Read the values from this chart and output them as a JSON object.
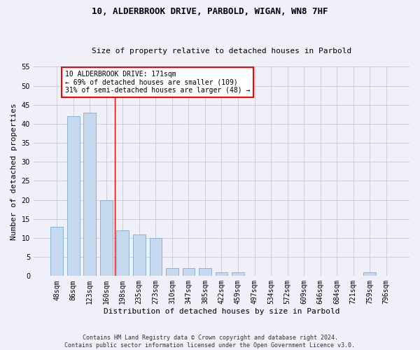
{
  "title1": "10, ALDERBROOK DRIVE, PARBOLD, WIGAN, WN8 7HF",
  "title2": "Size of property relative to detached houses in Parbold",
  "xlabel": "Distribution of detached houses by size in Parbold",
  "ylabel": "Number of detached properties",
  "categories": [
    "48sqm",
    "86sqm",
    "123sqm",
    "160sqm",
    "198sqm",
    "235sqm",
    "273sqm",
    "310sqm",
    "347sqm",
    "385sqm",
    "422sqm",
    "459sqm",
    "497sqm",
    "534sqm",
    "572sqm",
    "609sqm",
    "646sqm",
    "684sqm",
    "721sqm",
    "759sqm",
    "796sqm"
  ],
  "values": [
    13,
    42,
    43,
    20,
    12,
    11,
    10,
    2,
    2,
    2,
    1,
    1,
    0,
    0,
    0,
    0,
    0,
    0,
    0,
    1,
    0
  ],
  "bar_color": "#c5d8ed",
  "bar_edge_color": "#7bafd4",
  "vline_x": 3.5,
  "vline_color": "red",
  "ylim": [
    0,
    55
  ],
  "yticks": [
    0,
    5,
    10,
    15,
    20,
    25,
    30,
    35,
    40,
    45,
    50,
    55
  ],
  "annotation_text": "10 ALDERBROOK DRIVE: 171sqm\n← 69% of detached houses are smaller (109)\n31% of semi-detached houses are larger (48) →",
  "annotation_box_color": "white",
  "annotation_box_edge": "red",
  "footer": "Contains HM Land Registry data © Crown copyright and database right 2024.\nContains public sector information licensed under the Open Government Licence v3.0.",
  "bg_color": "#f0f0f8",
  "grid_color": "#c8c8d8",
  "title_fontsize": 9,
  "subtitle_fontsize": 8,
  "ylabel_fontsize": 8,
  "xlabel_fontsize": 8,
  "tick_fontsize": 7,
  "annot_fontsize": 7,
  "footer_fontsize": 6
}
